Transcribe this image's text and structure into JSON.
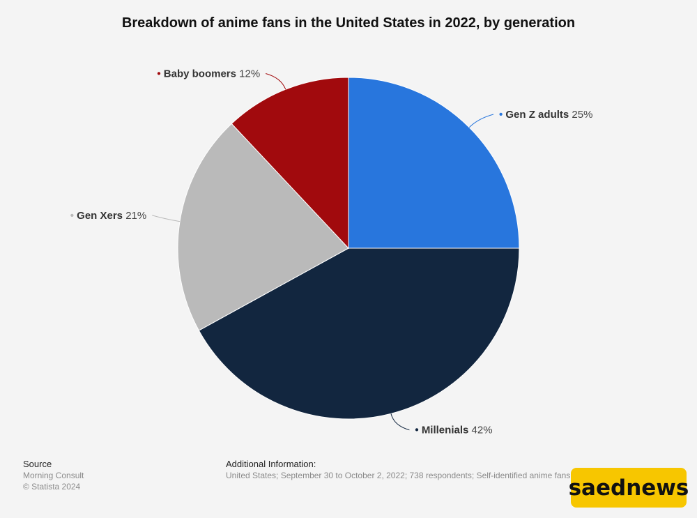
{
  "title": "Breakdown of anime fans in the United States in 2022, by generation",
  "chart_data": {
    "type": "pie",
    "title": "Breakdown of anime fans in the United States in 2022, by generation",
    "slices": [
      {
        "label": "Gen Z adults",
        "value": 25,
        "value_label": "25%",
        "color": "#2876dd"
      },
      {
        "label": "Millenials",
        "value": 42,
        "value_label": "42%",
        "color": "#12263f"
      },
      {
        "label": "Gen Xers",
        "value": 21,
        "value_label": "21%",
        "color": "#bababa"
      },
      {
        "label": "Baby boomers",
        "value": 12,
        "value_label": "12%",
        "color": "#a10a0d"
      }
    ],
    "start_angle": "12 o'clock",
    "direction": "clockwise",
    "legend": "none"
  },
  "footer": {
    "source_heading": "Source",
    "source_line1": "Morning Consult",
    "source_line2": "© Statista 2024",
    "additional_heading": "Additional Information:",
    "additional_text": "United States; September 30 to October 2, 2022; 738 respondents; Self-identified anime fans"
  },
  "watermark": "saednews"
}
